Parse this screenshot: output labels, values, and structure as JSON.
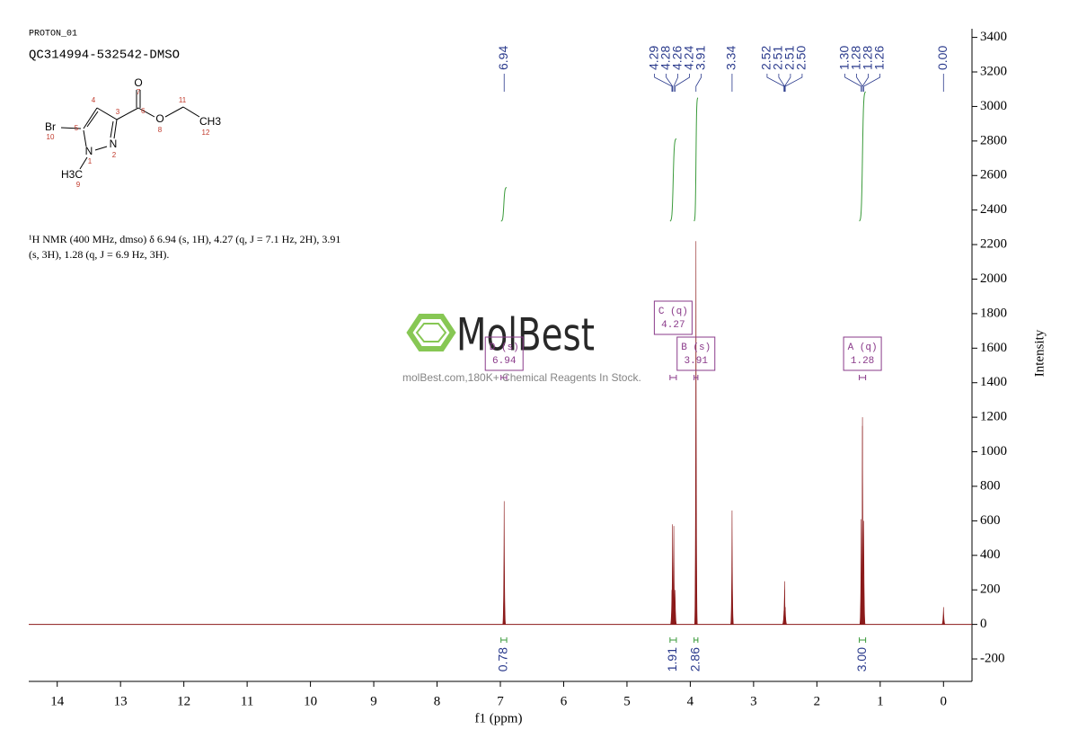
{
  "chart_data": {
    "type": "spectrum",
    "title": "PROTON_01",
    "subtitle": "QC314994-532542-DMSO",
    "description": "¹H NMR (400 MHz, dmso) δ 6.94 (s, 1H), 4.27 (q, J = 7.1 Hz, 2H), 3.91 (s, 3H), 1.28 (q, J = 6.9 Hz, 3H).",
    "xlabel": "f1 (ppm)",
    "ylabel": "Intensity",
    "xlim": [
      14.45,
      -0.45
    ],
    "xticks": [
      14,
      13,
      12,
      11,
      10,
      9,
      8,
      7,
      6,
      5,
      4,
      3,
      2,
      1,
      0
    ],
    "ylim": [
      -330,
      3450
    ],
    "yticks": [
      -200,
      0,
      200,
      400,
      600,
      800,
      1000,
      1200,
      1400,
      1600,
      1800,
      2000,
      2200,
      2400,
      2600,
      2800,
      3000,
      3200,
      3400
    ],
    "color": "#8b1a1a",
    "peaks": {
      "x": [
        6.94,
        4.29,
        4.28,
        4.26,
        4.24,
        3.91,
        3.34,
        2.52,
        2.51,
        2.51,
        2.5,
        1.3,
        1.28,
        1.28,
        1.26,
        0.0
      ],
      "values": [
        714,
        200,
        580,
        570,
        200,
        2220,
        660,
        80,
        200,
        250,
        100,
        610,
        1200,
        1150,
        600,
        100
      ]
    },
    "peak_labels": [
      6.94,
      4.29,
      4.28,
      4.26,
      4.24,
      3.91,
      3.34,
      2.52,
      2.51,
      2.51,
      {
        "value": 2.5,
        "label": "2.50"
      },
      {
        "value": 1.3,
        "label": "1.30"
      },
      1.28,
      1.28,
      1.26,
      {
        "value": 0,
        "label": "0.00"
      }
    ],
    "peak_label_color": "#2a3a8c",
    "integrals": [
      {
        "range": [
          6.99,
          6.9
        ],
        "value": 0.78
      },
      {
        "range": [
          4.32,
          4.22
        ],
        "value": 1.91
      },
      {
        "range": [
          3.94,
          3.88
        ],
        "value": 2.86
      },
      {
        "range": [
          1.33,
          1.23
        ],
        "value": {
          "value": 3,
          "label": "3.00"
        }
      }
    ],
    "integral_color": "#3a9a3a",
    "multiplets": [
      {
        "name": "D (s)",
        "shift": 6.94
      },
      {
        "name": "C (q)",
        "shift": 4.27
      },
      {
        "name": "B (s)",
        "shift": 3.91
      },
      {
        "name": "A (q)",
        "shift": 1.28
      }
    ],
    "multiplet_color": "#8a3a8a",
    "watermark": {
      "brand": "MolBest",
      "tagline": "molBest.com,180K+ Chemical Reagents In Stock."
    },
    "structure": {
      "labels": [
        "O",
        "7",
        "6",
        "O",
        "8",
        "11",
        "CH3",
        "12",
        "4",
        "3",
        "Br",
        "10",
        "5",
        "N",
        "2",
        "N",
        "1",
        "H3C",
        "9"
      ]
    }
  }
}
